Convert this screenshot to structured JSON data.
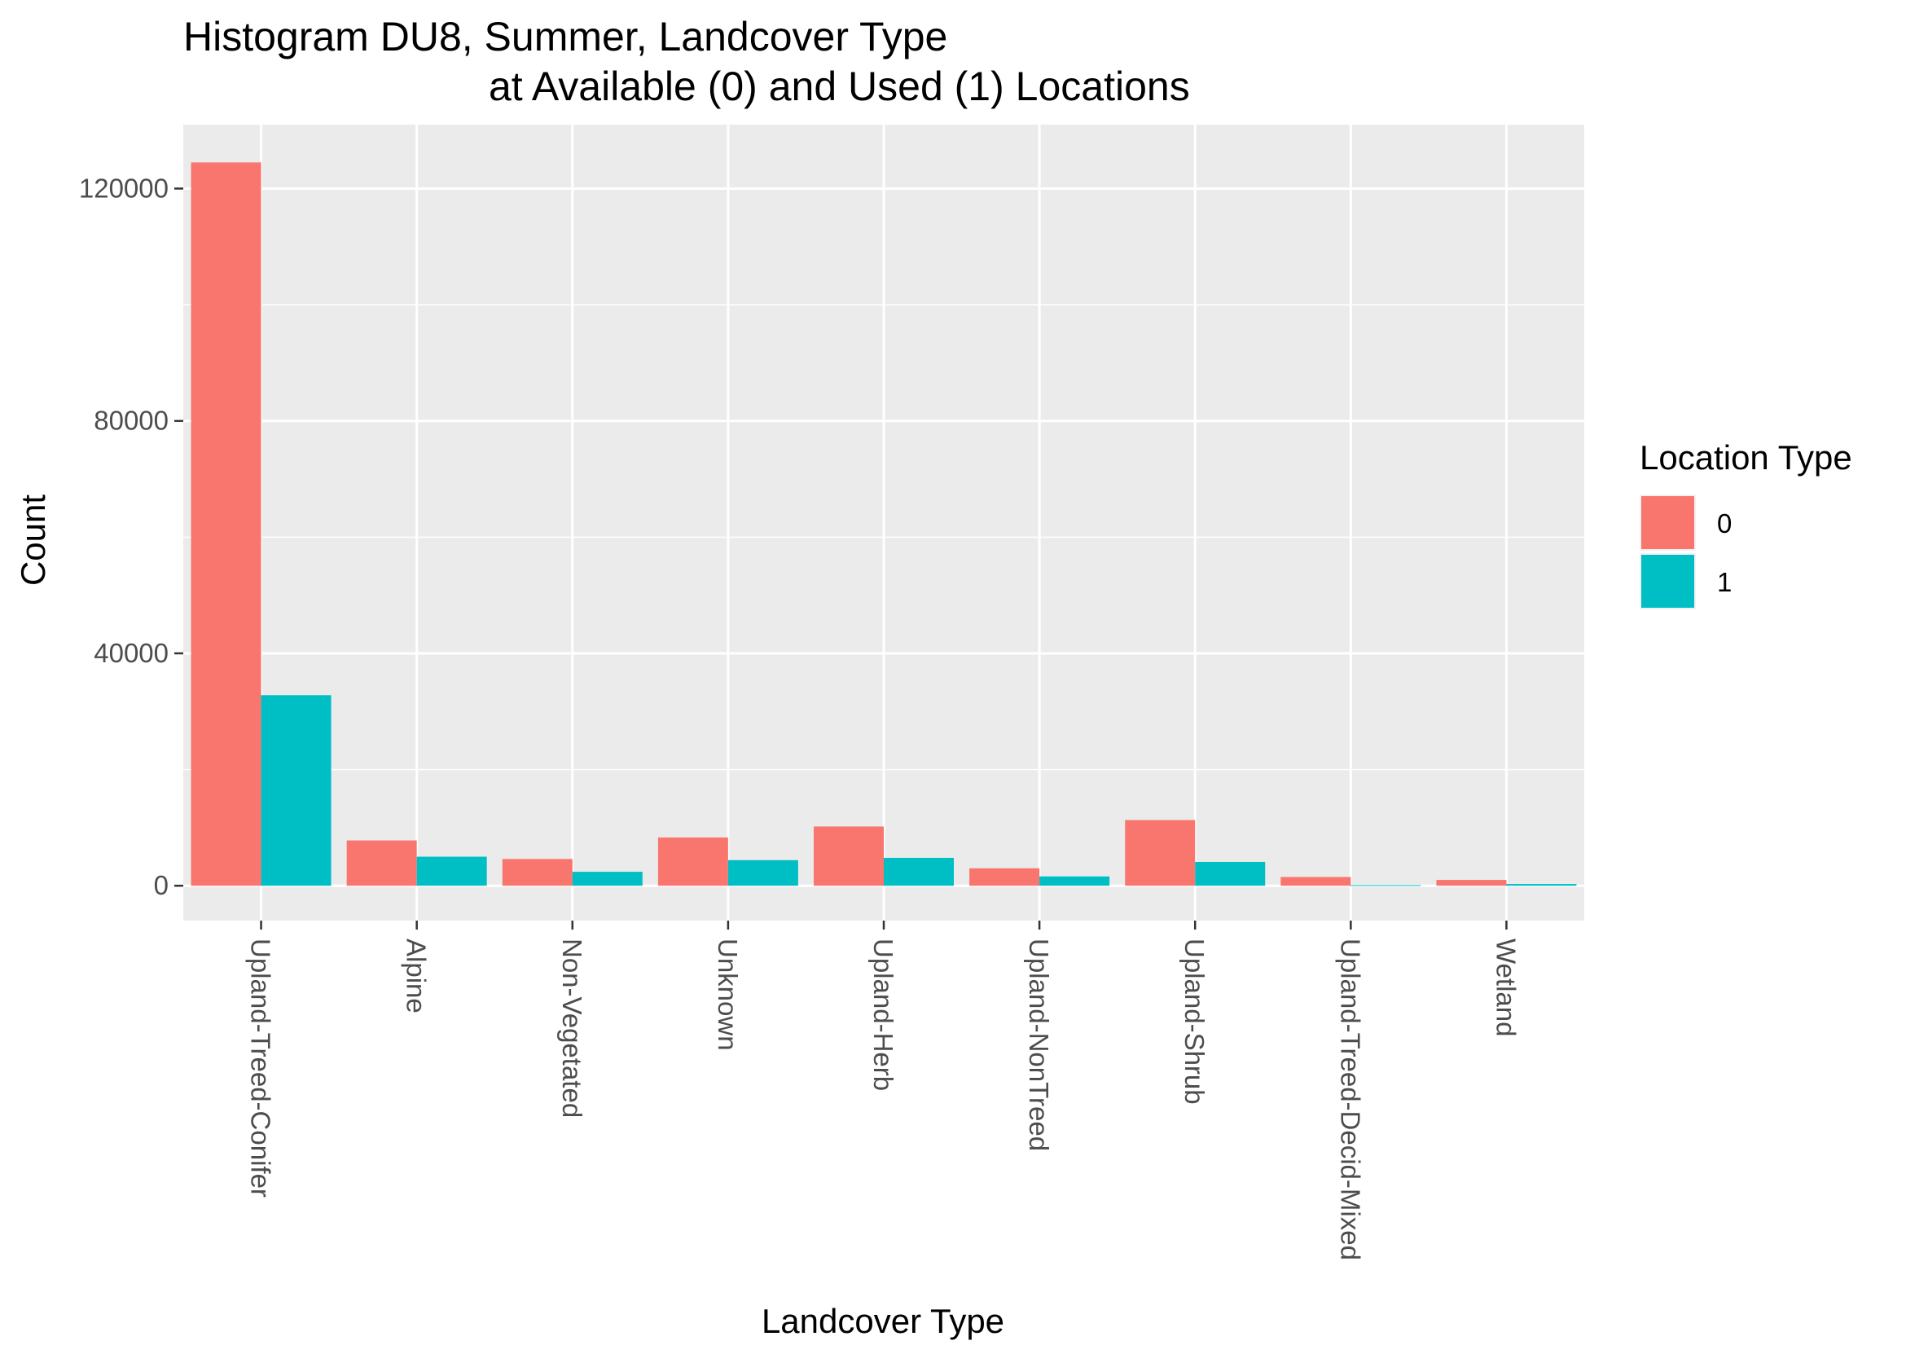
{
  "chart_data": {
    "type": "bar",
    "title": "Histogram DU8, Summer, Landcover Type",
    "subtitle": "at Available (0) and Used (1) Locations",
    "xlabel": "Landcover Type",
    "ylabel": "Count",
    "ylim": [
      -6000,
      131000
    ],
    "yticks": [
      0,
      40000,
      80000,
      120000
    ],
    "ytick_labels": [
      "0",
      "40000",
      "80000",
      "120000"
    ],
    "grid": true,
    "legend_title": "Location Type",
    "legend_position": "right",
    "categories": [
      "Upland-Treed-Conifer",
      "Alpine",
      "Non-Vegetated",
      "Unknown",
      "Upland-Herb",
      "Upland-NonTreed",
      "Upland-Shrub",
      "Upland-Treed-Decid-Mixed",
      "Wetland"
    ],
    "series": [
      {
        "name": "0",
        "color": "#F8766D",
        "values": [
          124500,
          7800,
          4600,
          8300,
          10200,
          3000,
          11300,
          1500,
          1000
        ]
      },
      {
        "name": "1",
        "color": "#00BFC4",
        "values": [
          32800,
          5000,
          2400,
          4400,
          4800,
          1600,
          4100,
          100,
          300
        ]
      }
    ]
  }
}
